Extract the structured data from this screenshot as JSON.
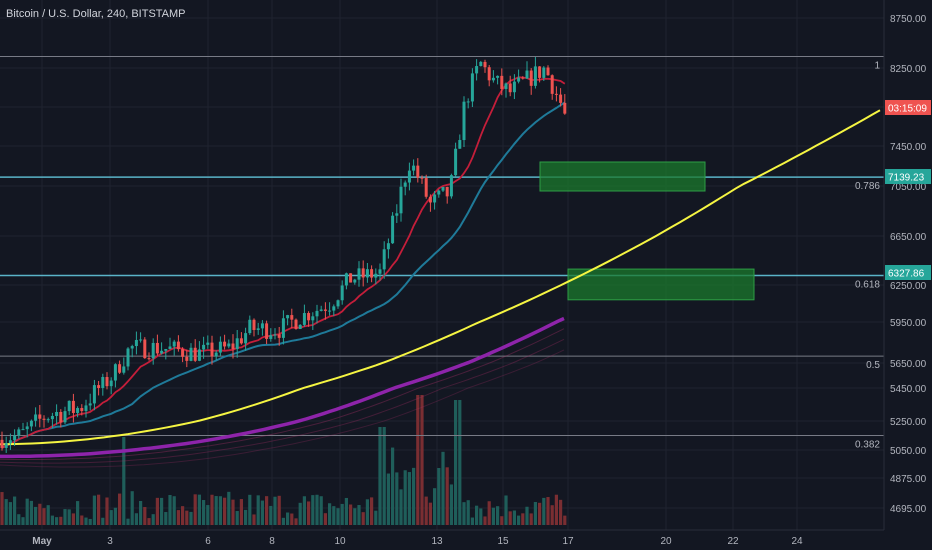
{
  "chart_data": {
    "type": "candlestick",
    "title": "Bitcoin / U.S. Dollar, 240, BITSTAMP",
    "y_ticks": [
      "8750.00",
      "8250.00",
      "7850.00",
      "7450.00",
      "7050.00",
      "6650.00",
      "6250.00",
      "5950.00",
      "5650.00",
      "5450.00",
      "5250.00",
      "5050.00",
      "4875.00",
      "4695.00"
    ],
    "x_ticks": [
      "May",
      "3",
      "6",
      "8",
      "10",
      "13",
      "15",
      "17",
      "20",
      "22",
      "24"
    ],
    "price_labels": [
      {
        "text": "03:15:09",
        "color": "#ef5350"
      },
      {
        "text": "7139.23",
        "color": "#26a69a"
      },
      {
        "text": "6327.86",
        "color": "#26a69a"
      }
    ],
    "fib_levels": [
      {
        "label": "1",
        "price": 8365
      },
      {
        "label": "0.786",
        "price": 7139
      },
      {
        "label": "0.618",
        "price": 6328
      },
      {
        "label": "0.5",
        "price": 5700
      },
      {
        "label": "0.382",
        "price": 5150
      }
    ],
    "colors": {
      "background": "#131722",
      "up": "#26a69a",
      "down": "#ef5350",
      "ma_fast": "#c41e3a",
      "ma_mid": "#1f7a99",
      "ma_slow": "#8e24aa",
      "trendline": "#f5f542",
      "zones": "#1b7a2c",
      "fib_line": "#787b86",
      "level_line": "#5ab4c8"
    },
    "last_close": 7782
  }
}
